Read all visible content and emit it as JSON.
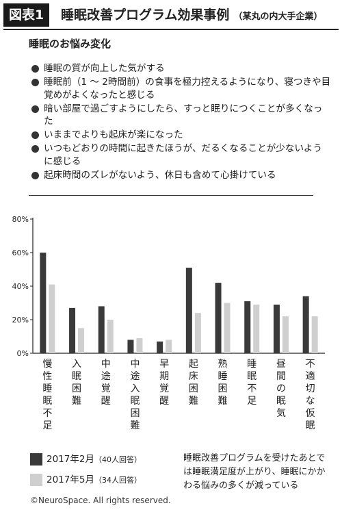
{
  "header": {
    "figure_label": "図表1",
    "title": "睡眠改善プログラム効果事例",
    "subtitle": "（某丸の内大手企業）"
  },
  "section_heading": "睡眠のお悩み変化",
  "bullets": [
    "睡眠の質が向上した気がする",
    "睡眠前（1 〜 2時間前）の食事を極力控えるようになり、寝つきや目覚めがよくなったと感じる",
    "暗い部屋で過ごすようにしたら、すっと眠りにつくことが多くなった",
    "いままでよりも起床が楽になった",
    "いつもどおりの時間に起きたほうが、だるくなることが少ないように感じる",
    "起床時間のズレがないよう、休日も含めて心掛けている"
  ],
  "chart_data": {
    "type": "bar",
    "categories": [
      "慢性睡眠不足",
      "入眠困難",
      "中途覚醒",
      "中途入眠困難",
      "早期覚醒",
      "起床困難",
      "熟睡困難",
      "睡眠不足",
      "昼間の眠気",
      "不適切な仮眠"
    ],
    "series": [
      {
        "name": "2017年2月",
        "values": [
          60,
          27,
          28,
          8,
          7,
          51,
          42,
          31,
          29,
          34
        ]
      },
      {
        "name": "2017年5月",
        "values": [
          41,
          15,
          20,
          9,
          8,
          24,
          30,
          29,
          22,
          22
        ]
      }
    ],
    "yticks": [
      "0%",
      "20%",
      "40%",
      "60%",
      "80%"
    ],
    "ylim": [
      0,
      80
    ],
    "colors": [
      "#3a3a3a",
      "#cfcfcf"
    ],
    "grid": false
  },
  "legend": [
    {
      "label": "2017年2月",
      "note": "（40人回答）",
      "color": "#3a3a3a"
    },
    {
      "label": "2017年5月",
      "note": "（34人回答）",
      "color": "#cfcfcf"
    }
  ],
  "note": "睡眠改善プログラムを受けたあとでは睡眠満足度が上がり、睡眠にかかわる悩みの多くが減っている",
  "copyright": "©NeuroSpace. All rights reserved."
}
